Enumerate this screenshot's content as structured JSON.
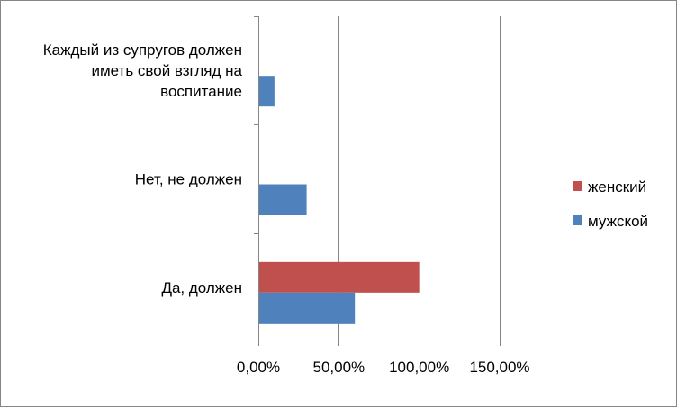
{
  "chart_data": {
    "type": "bar",
    "orientation": "horizontal",
    "title": "",
    "xlabel": "",
    "ylabel": "",
    "categories": [
      [
        "Каждый из супругов должен",
        "иметь свой взгляд на",
        "воспитание"
      ],
      [
        "Нет, не должен"
      ],
      [
        "Да, должен"
      ]
    ],
    "series": [
      {
        "name": "женский",
        "color": "#c0504d",
        "values": [
          0,
          0,
          100
        ]
      },
      {
        "name": "мужской",
        "color": "#4f81bd",
        "values": [
          10,
          30,
          60
        ]
      }
    ],
    "xlim": [
      0,
      150
    ],
    "xticks": [
      0,
      50,
      100,
      150
    ],
    "xtick_labels": [
      "0,00%",
      "50,00%",
      "100,00%",
      "150,00%"
    ],
    "grid": "vertical",
    "legend_position": "right",
    "legend": [
      {
        "name": "женский",
        "color": "#c0504d"
      },
      {
        "name": "мужской",
        "color": "#4f81bd"
      }
    ]
  }
}
